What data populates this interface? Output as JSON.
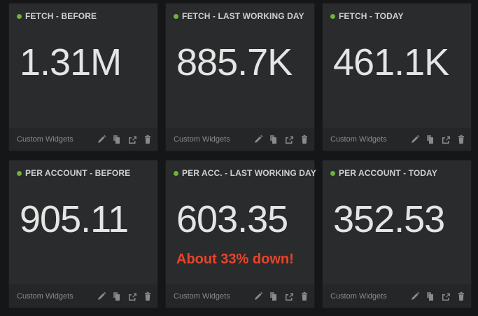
{
  "widgets": [
    {
      "title": "FETCH - BEFORE",
      "value": "1.31M",
      "note": "",
      "footer_label": "Custom Widgets"
    },
    {
      "title": "FETCH - LAST WORKING DAY",
      "value": "885.7K",
      "note": "",
      "footer_label": "Custom Widgets"
    },
    {
      "title": "FETCH - TODAY",
      "value": "461.1K",
      "note": "",
      "footer_label": "Custom Widgets"
    },
    {
      "title": "PER ACCOUNT - BEFORE",
      "value": "905.11",
      "note": "",
      "footer_label": "Custom Widgets"
    },
    {
      "title": "PER ACC. - LAST WORKING DAY",
      "value": "603.35",
      "note": "About 33% down!",
      "footer_label": "Custom Widgets"
    },
    {
      "title": "PER ACCOUNT - TODAY",
      "value": "352.53",
      "note": "",
      "footer_label": "Custom Widgets"
    }
  ],
  "colors": {
    "status_dot": "#6fb13c",
    "note": "#e8452b",
    "widget_bg": "#2a2b2c",
    "page_bg": "#151617"
  },
  "tool_icons": [
    "pencil-icon",
    "copy-icon",
    "share-icon",
    "trash-icon"
  ]
}
